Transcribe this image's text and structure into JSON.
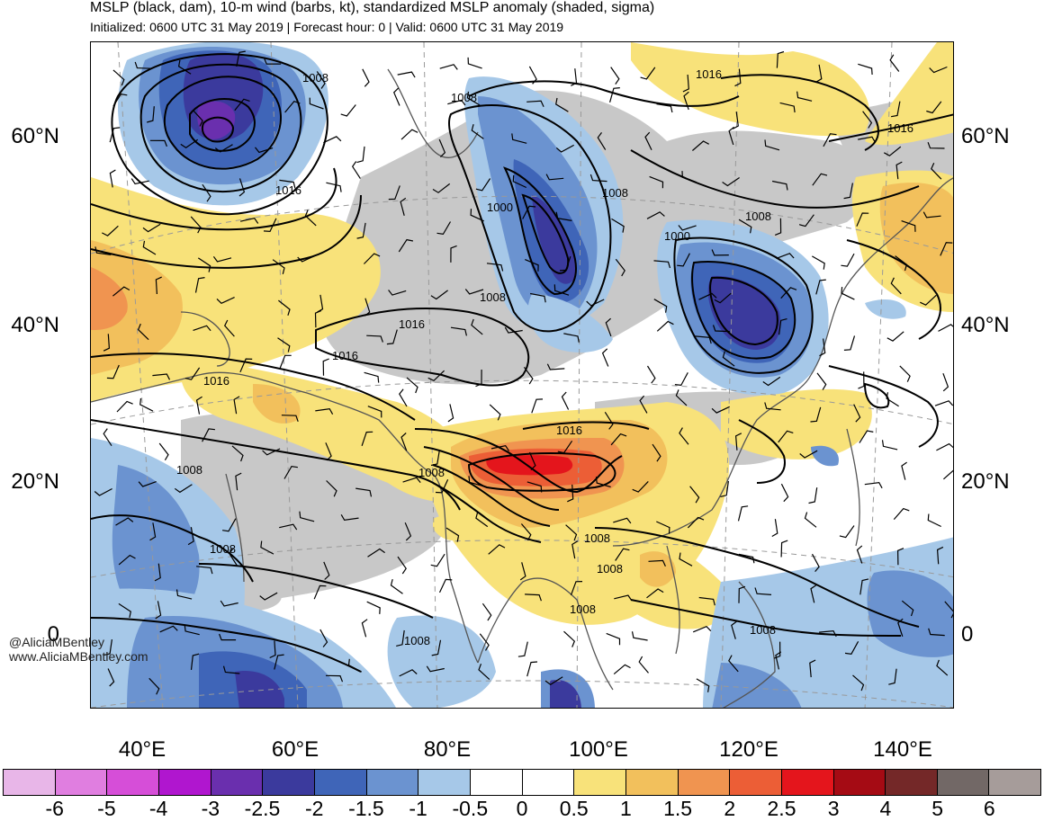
{
  "header": {
    "title": "MSLP (black, dam), 10-m wind (barbs, kt), standardized MSLP anomaly (shaded, sigma)",
    "subtitle": "Initialized: 0600 UTC 31 May 2019 | Forecast hour: 0 | Valid: 0600 UTC 31 May 2019"
  },
  "axes": {
    "lat_labels": [
      "60°N",
      "40°N",
      "20°N",
      "0"
    ],
    "lon_labels": [
      "40°E",
      "60°E",
      "80°E",
      "100°E",
      "120°E",
      "140°E"
    ]
  },
  "isobar_labels": [
    "1008",
    "1016",
    "1016",
    "1016",
    "1008",
    "1000",
    "1008",
    "1016",
    "1008",
    "1000",
    "1008",
    "1016",
    "1016",
    "1016",
    "1008",
    "1008",
    "1008",
    "1008",
    "1008",
    "1008",
    "1008",
    "1008"
  ],
  "credit": {
    "line1": "@AliciaMBentley",
    "line2": "www.AliciaMBentley.com"
  },
  "colorbar": {
    "colors": [
      "#e8b6e8",
      "#e07ee0",
      "#d64ed8",
      "#b016cf",
      "#6a2fae",
      "#3b3a9d",
      "#3f65b8",
      "#6b93d0",
      "#a6c8e8",
      "#ffffff",
      "#ffffff",
      "#f8e27a",
      "#f2c05c",
      "#f09450",
      "#ec5e36",
      "#e4151c",
      "#a50b14",
      "#742828",
      "#726866",
      "#a69c9a"
    ],
    "labels": [
      "-6",
      "-5",
      "-4",
      "-3",
      "-2.5",
      "-2",
      "-1.5",
      "-1",
      "-0.5",
      "0",
      "0.5",
      "1",
      "1.5",
      "2",
      "2.5",
      "3",
      "4",
      "5",
      "6"
    ]
  }
}
